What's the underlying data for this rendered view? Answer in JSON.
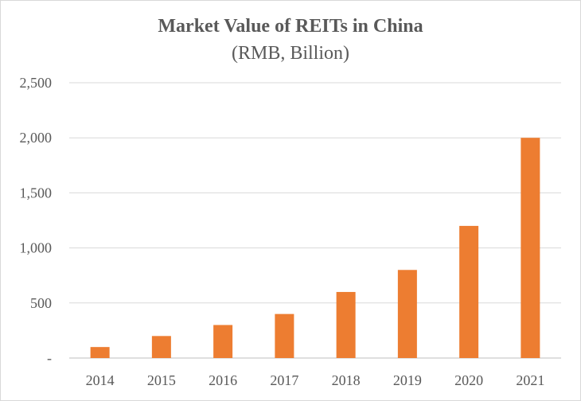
{
  "chart_data": {
    "type": "bar",
    "title": "Market Value of REITs in China",
    "subtitle": "(RMB, Billion)",
    "xlabel": "",
    "ylabel": "",
    "categories": [
      "2014",
      "2015",
      "2016",
      "2017",
      "2018",
      "2019",
      "2020",
      "2021"
    ],
    "values": [
      100,
      200,
      300,
      400,
      600,
      800,
      1200,
      2000
    ],
    "ylim": [
      0,
      2500
    ],
    "yticks": [
      0,
      500,
      1000,
      1500,
      2000,
      2500
    ],
    "ytick_labels": [
      "-",
      "500",
      "1,000",
      "1,500",
      "2,000",
      "2,500"
    ],
    "grid": true,
    "legend": "none",
    "bar_color": "#ed7d31"
  }
}
